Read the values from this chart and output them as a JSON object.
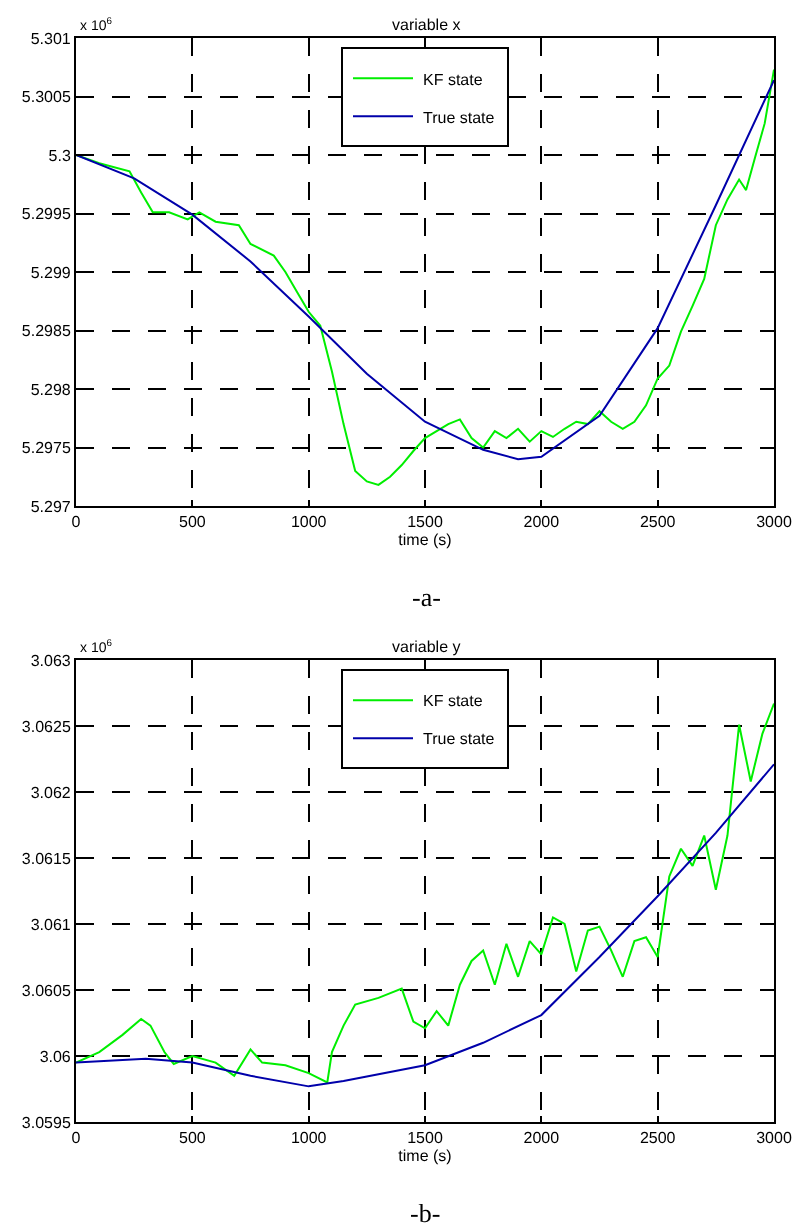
{
  "chart_data": [
    {
      "type": "line",
      "title": "variable x",
      "xlabel": "time (s)",
      "annotations": [
        "x 10$^{6}$",
        "-a-"
      ],
      "xlim": [
        0,
        3000
      ],
      "xticks": [
        0,
        500,
        1000,
        1500,
        2000,
        2500,
        3000
      ],
      "ylim": [
        5.297,
        5.301
      ],
      "yticks": [
        5.297,
        5.2975,
        5.298,
        5.2985,
        5.299,
        5.2995,
        5.3,
        5.3005,
        5.301
      ],
      "grid": true,
      "legend": "top",
      "line_style": "solid",
      "marker": "none",
      "series": [
        {
          "name": "KF state",
          "color": "#00ee00",
          "x": [
            0,
            100,
            230,
            280,
            330,
            400,
            480,
            530,
            600,
            700,
            750,
            850,
            900,
            950,
            1000,
            1050,
            1100,
            1150,
            1200,
            1250,
            1300,
            1350,
            1400,
            1450,
            1500,
            1550,
            1600,
            1650,
            1700,
            1750,
            1800,
            1850,
            1900,
            1950,
            2000,
            2050,
            2100,
            2150,
            2200,
            2250,
            2300,
            2350,
            2400,
            2450,
            2500,
            2550,
            2600,
            2650,
            2700,
            2750,
            2800,
            2850,
            2880,
            2920,
            2960,
            3000
          ],
          "values": [
            5.3,
            5.29993,
            5.29986,
            5.29968,
            5.29951,
            5.29951,
            5.29945,
            5.29951,
            5.29943,
            5.2994,
            5.29924,
            5.29914,
            5.299,
            5.29883,
            5.29866,
            5.29854,
            5.29815,
            5.2977,
            5.2973,
            5.29721,
            5.29718,
            5.29725,
            5.29735,
            5.29747,
            5.29758,
            5.29764,
            5.2977,
            5.29774,
            5.29758,
            5.2975,
            5.29764,
            5.29758,
            5.29766,
            5.29755,
            5.29764,
            5.29759,
            5.29766,
            5.29772,
            5.2977,
            5.29781,
            5.29772,
            5.29766,
            5.29772,
            5.29786,
            5.29809,
            5.2982,
            5.29849,
            5.29871,
            5.29894,
            5.2994,
            5.29962,
            5.29979,
            5.2997,
            5.29999,
            5.30027,
            5.30073
          ]
        },
        {
          "name": "True state",
          "color": "#0000aa",
          "x": [
            0,
            250,
            500,
            750,
            1000,
            1250,
            1500,
            1750,
            1900,
            2000,
            2250,
            2500,
            2750,
            3000
          ],
          "values": [
            5.3,
            5.2998,
            5.29949,
            5.29909,
            5.29862,
            5.29813,
            5.29772,
            5.29748,
            5.2974,
            5.29742,
            5.29777,
            5.29852,
            5.29957,
            5.30064
          ]
        }
      ]
    },
    {
      "type": "line",
      "title": "variable y",
      "xlabel": "time (s)",
      "annotations": [
        "x 10$^{6}$",
        "-b-"
      ],
      "xlim": [
        0,
        3000
      ],
      "xticks": [
        0,
        500,
        1000,
        1500,
        2000,
        2500,
        3000
      ],
      "ylim": [
        3.0595,
        3.063
      ],
      "yticks": [
        3.0595,
        3.06,
        3.0605,
        3.061,
        3.0615,
        3.062,
        3.0625,
        3.063
      ],
      "grid": true,
      "legend": "top",
      "line_style": "solid",
      "marker": "none",
      "series": [
        {
          "name": "KF state",
          "color": "#00ee00",
          "x": [
            0,
            100,
            200,
            280,
            320,
            380,
            420,
            500,
            600,
            680,
            750,
            800,
            900,
            1000,
            1080,
            1100,
            1150,
            1200,
            1300,
            1400,
            1450,
            1500,
            1550,
            1600,
            1650,
            1700,
            1750,
            1800,
            1850,
            1900,
            1950,
            2000,
            2050,
            2100,
            2150,
            2200,
            2250,
            2300,
            2350,
            2400,
            2450,
            2500,
            2550,
            2600,
            2650,
            2700,
            2750,
            2800,
            2850,
            2900,
            2950,
            3000
          ],
          "values": [
            3.05995,
            3.06003,
            3.06016,
            3.06028,
            3.06023,
            3.06003,
            3.05994,
            3.06,
            3.05995,
            3.05985,
            3.06005,
            3.05995,
            3.05993,
            3.05987,
            3.0598,
            3.06003,
            3.06023,
            3.06039,
            3.06044,
            3.06051,
            3.06026,
            3.06021,
            3.06034,
            3.06023,
            3.06054,
            3.06072,
            3.0608,
            3.06054,
            3.06085,
            3.0606,
            3.06087,
            3.06077,
            3.06105,
            3.061,
            3.06064,
            3.06095,
            3.06098,
            3.0608,
            3.0606,
            3.06087,
            3.0609,
            3.06075,
            3.06136,
            3.06157,
            3.06144,
            3.06167,
            3.06126,
            3.06167,
            3.06251,
            3.06208,
            3.06244,
            3.06267
          ]
        },
        {
          "name": "True state",
          "color": "#0000aa",
          "x": [
            0,
            300,
            500,
            750,
            1000,
            1150,
            1500,
            1750,
            2000,
            2250,
            2500,
            2750,
            3000
          ],
          "values": [
            3.05995,
            3.05998,
            3.05995,
            3.05985,
            3.05977,
            3.05981,
            3.05993,
            3.0601,
            3.06031,
            3.06075,
            3.06121,
            3.06169,
            3.06221
          ]
        }
      ]
    }
  ]
}
